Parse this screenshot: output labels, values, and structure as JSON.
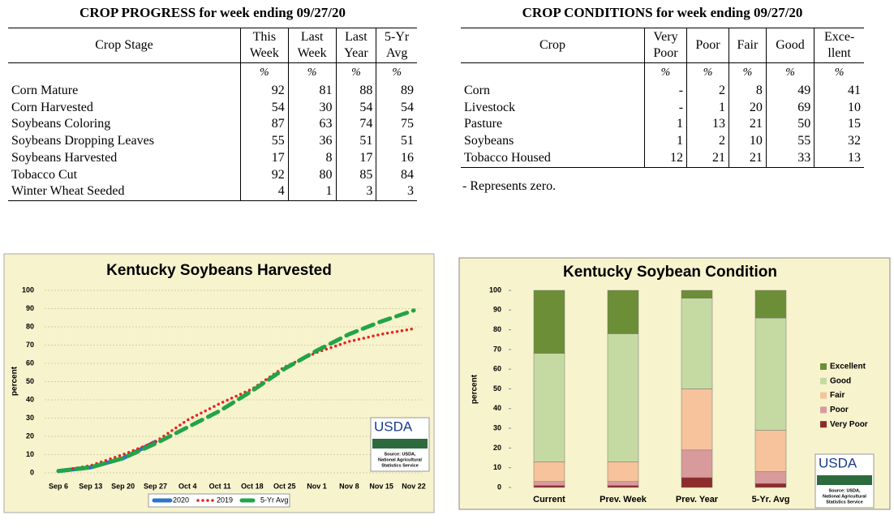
{
  "progress_table": {
    "title": "CROP PROGRESS for week ending 09/27/20",
    "headers": [
      [
        "Crop Stage"
      ],
      [
        "This",
        "Week"
      ],
      [
        "Last",
        "Week"
      ],
      [
        "Last",
        "Year"
      ],
      [
        "5-Yr",
        "Avg"
      ]
    ],
    "units": [
      "%",
      "%",
      "%",
      "%"
    ],
    "rows": [
      [
        "Corn Mature",
        92,
        81,
        88,
        89
      ],
      [
        "Corn Harvested",
        54,
        30,
        54,
        54
      ],
      [
        "Soybeans Coloring",
        87,
        63,
        74,
        75
      ],
      [
        "Soybeans Dropping Leaves",
        55,
        36,
        51,
        51
      ],
      [
        "Soybeans Harvested",
        17,
        8,
        17,
        16
      ],
      [
        "Tobacco Cut",
        92,
        80,
        85,
        84
      ],
      [
        "Winter Wheat Seeded",
        4,
        1,
        3,
        3
      ]
    ]
  },
  "conditions_table": {
    "title": "CROP CONDITIONS for week ending 09/27/20",
    "headers": [
      [
        "Crop"
      ],
      [
        "Very",
        "Poor"
      ],
      [
        "Poor"
      ],
      [
        "Fair"
      ],
      [
        "Good"
      ],
      [
        "Exce-",
        "llent"
      ]
    ],
    "units": [
      "%",
      "%",
      "%",
      "%",
      "%"
    ],
    "rows": [
      [
        "Corn",
        "-",
        2,
        8,
        49,
        41
      ],
      [
        "Livestock",
        "-",
        1,
        20,
        69,
        10
      ],
      [
        "Pasture",
        1,
        13,
        21,
        50,
        15
      ],
      [
        "Soybeans",
        1,
        2,
        10,
        55,
        32
      ],
      [
        "Tobacco Housed",
        12,
        21,
        21,
        33,
        13
      ]
    ],
    "footnote": "- Represents zero."
  },
  "chart_data": [
    {
      "type": "line",
      "title": "Kentucky Soybeans Harvested",
      "y_label": "percent",
      "categories": [
        "Sep 6",
        "Sep 13",
        "Sep 20",
        "Sep 27",
        "Oct 4",
        "Oct 11",
        "Oct 18",
        "Oct 25",
        "Nov 1",
        "Nov 8",
        "Nov 15",
        "Nov 22"
      ],
      "series": [
        {
          "name": "2020",
          "color": "#2e75c8",
          "values": [
            1,
            3,
            8,
            17,
            null,
            null,
            null,
            null,
            null,
            null,
            null,
            null
          ]
        },
        {
          "name": "2019",
          "color": "#e8231f",
          "values": [
            1,
            4,
            10,
            17,
            29,
            38,
            46,
            58,
            66,
            72,
            76,
            79
          ]
        },
        {
          "name": "5-Yr Avg",
          "color": "#22a447",
          "values": [
            1,
            3,
            8,
            16,
            25,
            34,
            45,
            57,
            67,
            76,
            83,
            89
          ]
        }
      ],
      "ylim": [
        0,
        100
      ],
      "yticks": [
        0,
        10,
        20,
        30,
        40,
        50,
        60,
        70,
        80,
        90,
        100
      ],
      "grid": true,
      "legend": "bottom",
      "logo": "USDA",
      "source": [
        "Source: USDA,",
        "National Agricultural",
        "Statistics Service"
      ]
    },
    {
      "type": "stacked_bar",
      "title": "Kentucky Soybean Condition",
      "y_label": "percent",
      "categories": [
        "Current",
        "Prev. Week",
        "Prev. Year",
        "5-Yr. Avg"
      ],
      "series": [
        {
          "name": "Very Poor",
          "color": "#8e2b2b",
          "values": [
            1,
            1,
            5,
            2
          ]
        },
        {
          "name": "Poor",
          "color": "#d99a9c",
          "values": [
            2,
            2,
            14,
            6
          ]
        },
        {
          "name": "Fair",
          "color": "#f6c39c",
          "values": [
            10,
            10,
            31,
            21
          ]
        },
        {
          "name": "Good",
          "color": "#c5daa2",
          "values": [
            55,
            65,
            46,
            57
          ]
        },
        {
          "name": "Excellent",
          "color": "#6c8e37",
          "values": [
            32,
            22,
            4,
            14
          ]
        }
      ],
      "ylim": [
        0,
        100
      ],
      "yticks": [
        0,
        10,
        20,
        30,
        40,
        50,
        60,
        70,
        80,
        90,
        100
      ],
      "grid": false,
      "legend": "right",
      "logo": "USDA",
      "source": [
        "Source: USDA,",
        "National Agricultural",
        "Statistics Service"
      ]
    }
  ]
}
